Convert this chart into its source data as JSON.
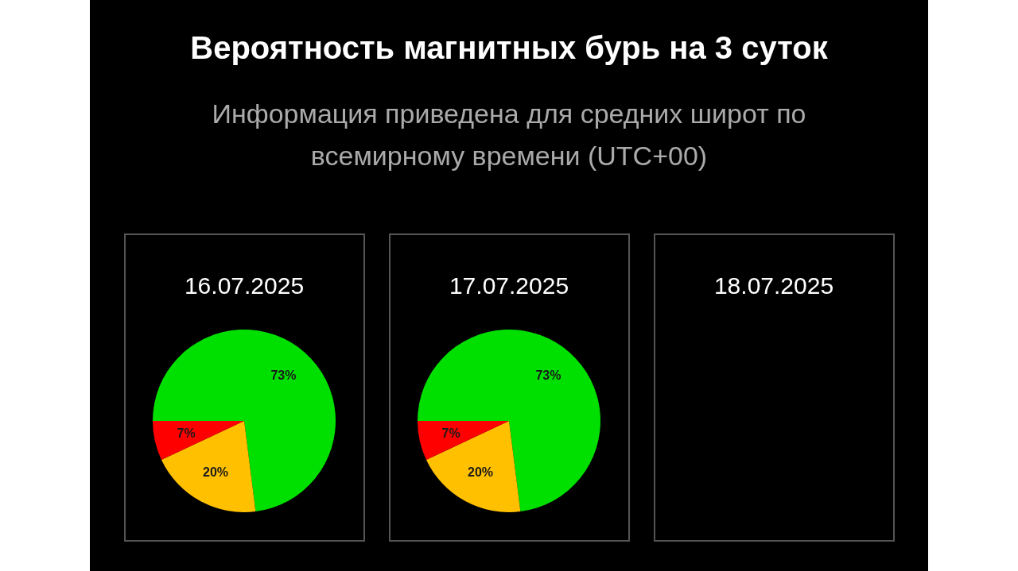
{
  "chart_data": [
    {
      "type": "other",
      "title": "Вероятность магнитных бурь на 3 суток",
      "subtitle": "Информация приведена для средних широт по всемирному времени (UTC+00)"
    },
    {
      "type": "pie",
      "title": "16.07.2025",
      "categories": [
        null,
        null,
        null
      ],
      "values": [
        73,
        20,
        7
      ],
      "colors": [
        "#00e000",
        "#ffc000",
        "#ff0000"
      ],
      "value_labels": [
        "73%",
        "20%",
        "7%"
      ]
    },
    {
      "type": "pie",
      "title": "17.07.2025",
      "categories": [
        null,
        null,
        null
      ],
      "values": [
        73,
        20,
        7
      ],
      "colors": [
        "#00e000",
        "#ffc000",
        "#ff0000"
      ],
      "value_labels": [
        "73%",
        "20%",
        "7%"
      ]
    },
    {
      "type": "other",
      "title": "18.07.2025"
    }
  ]
}
